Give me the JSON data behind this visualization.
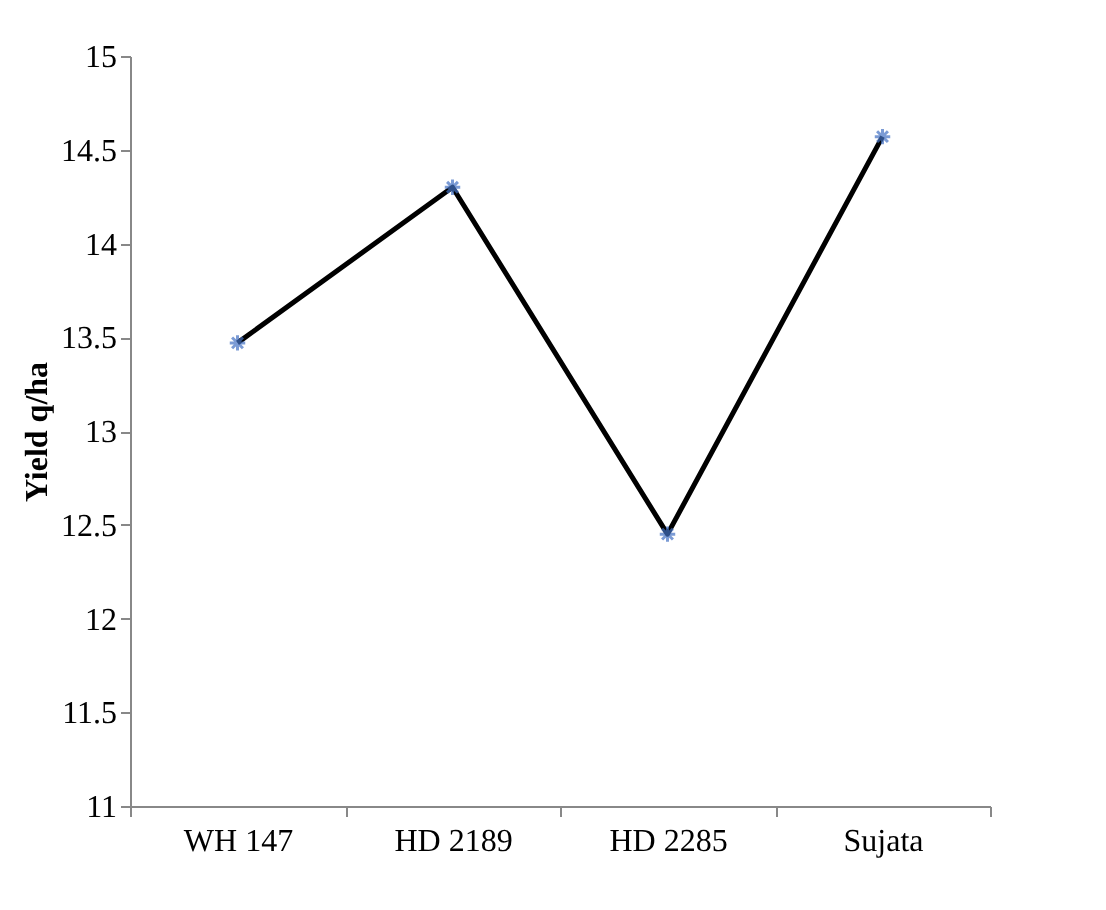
{
  "chart_data": {
    "type": "line",
    "ylabel": "Yield q/ha",
    "categories": [
      "WH 147",
      "HD 2189",
      "HD 2285",
      "Sujata"
    ],
    "series": [
      {
        "color": "#000000",
        "colors": [
          "#4472c4",
          "#4472c4",
          "#4472c4",
          "#4472c4"
        ],
        "values": [
          13.47,
          14.3,
          12.45,
          14.57
        ]
      }
    ],
    "ylim": [
      11,
      15
    ],
    "yticks": [
      11,
      11.5,
      12,
      12.5,
      13,
      13.5,
      14,
      14.5,
      15
    ],
    "grid": false,
    "marker": "cross",
    "line_style": "solid"
  }
}
